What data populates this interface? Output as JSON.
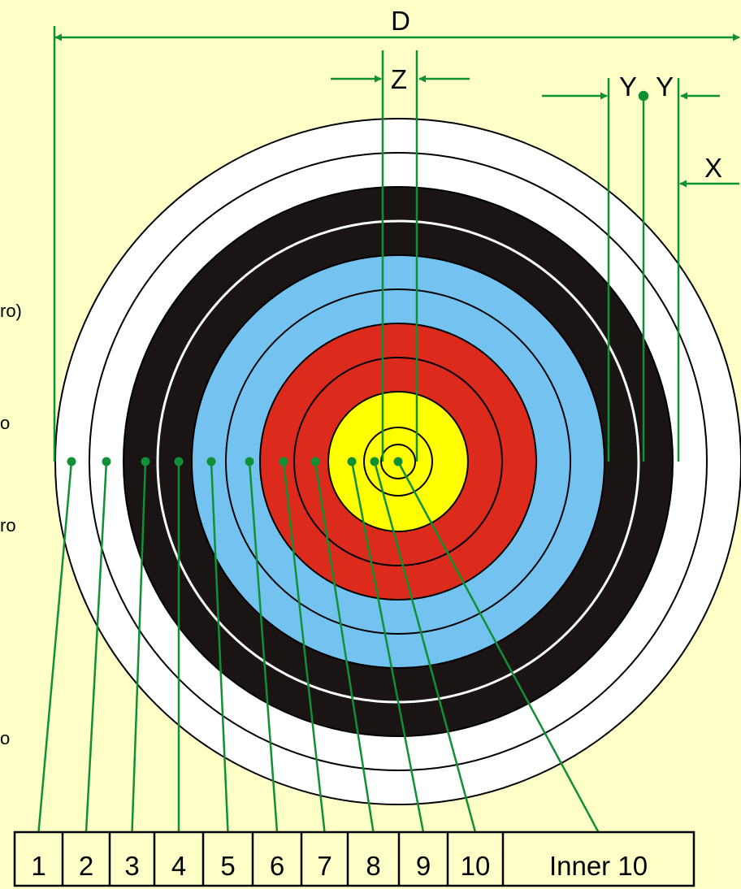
{
  "dimension_labels": {
    "d": "D",
    "z": "Z",
    "y_left": "Y",
    "y_right": "Y",
    "x": "X"
  },
  "left_clipped_text": [
    "ro)",
    "o",
    "ro",
    "o"
  ],
  "score_table": {
    "cells": [
      "1",
      "2",
      "3",
      "4",
      "5",
      "6",
      "7",
      "8",
      "9",
      "10",
      "Inner 10"
    ]
  },
  "zones": [
    {
      "label": "1",
      "color": "white"
    },
    {
      "label": "2",
      "color": "white"
    },
    {
      "label": "3",
      "color": "black"
    },
    {
      "label": "4",
      "color": "black"
    },
    {
      "label": "5",
      "color": "light-blue"
    },
    {
      "label": "6",
      "color": "light-blue"
    },
    {
      "label": "7",
      "color": "red"
    },
    {
      "label": "8",
      "color": "red"
    },
    {
      "label": "9",
      "color": "yellow"
    },
    {
      "label": "10",
      "color": "yellow"
    },
    {
      "label": "Inner 10",
      "color": "yellow"
    }
  ],
  "colors": {
    "background": "#ffffc8",
    "white": "#ffffff",
    "black": "#1a1414",
    "light_blue": "#74c2f0",
    "red": "#dc2a1c",
    "yellow": "#ffff00",
    "leader": "#109035"
  }
}
